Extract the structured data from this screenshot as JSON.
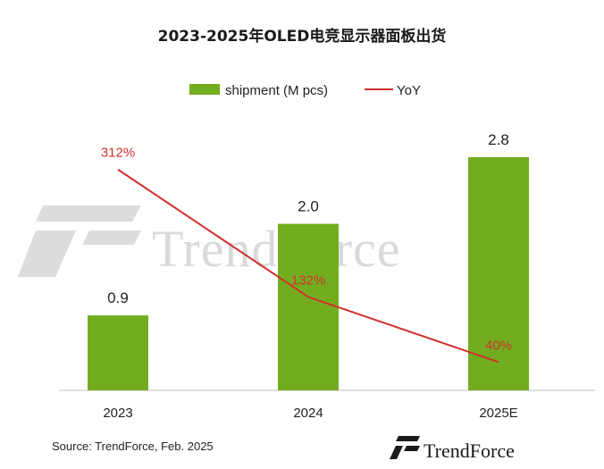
{
  "chart_data": {
    "type": "bar",
    "title": "2023-2025年OLED电竞显示器面板出货",
    "categories": [
      "2023",
      "2024",
      "2025E"
    ],
    "series": [
      {
        "name": "shipment (M pcs)",
        "type": "bar",
        "color": "#72ad1f",
        "values": [
          0.9,
          2.0,
          2.8
        ],
        "labels": [
          "0.9",
          "2.0",
          "2.8"
        ]
      },
      {
        "name": "YoY",
        "type": "line",
        "color": "#d0312d",
        "values": [
          312,
          132,
          40
        ],
        "labels": [
          "312%",
          "132%",
          "40%"
        ]
      }
    ],
    "bar_ylim": [
      0,
      3.4
    ],
    "line_ylim": [
      0,
      400
    ],
    "legend_position": "top",
    "grid": false,
    "source": "Source: TrendForce, Feb. 2025",
    "watermark": "TrendForce",
    "logo": "TrendForce"
  }
}
